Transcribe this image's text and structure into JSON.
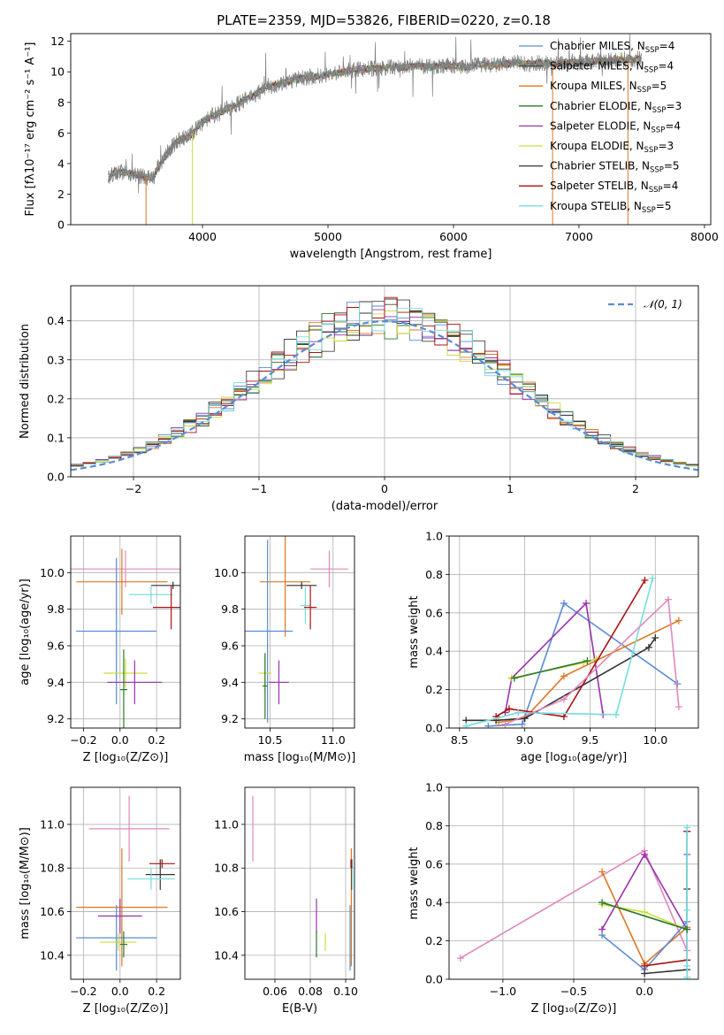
{
  "figure": {
    "title": "PLATE=2359, MJD=53826, FIBERID=0220, z=0.18"
  },
  "legend": [
    {
      "label": "Chabrier MILES, N",
      "sub": "SSP",
      "suffix": "=4",
      "color": "#5b8bd6"
    },
    {
      "label": "Salpeter MILES, N",
      "sub": "SSP",
      "suffix": "=4",
      "color": "#444444"
    },
    {
      "label": "Kroupa MILES, N",
      "sub": "SSP",
      "suffix": "=5",
      "color": "#dd7722"
    },
    {
      "label": "Chabrier ELODIE, N",
      "sub": "SSP",
      "suffix": "=3",
      "color": "#2a7a2a"
    },
    {
      "label": "Salpeter ELODIE, N",
      "sub": "SSP",
      "suffix": "=4",
      "color": "#9932aa"
    },
    {
      "label": "Kroupa ELODIE, N",
      "sub": "SSP",
      "suffix": "=3",
      "color": "#cddc39"
    },
    {
      "label": "Chabrier STELIB, N",
      "sub": "SSP",
      "suffix": "=5",
      "color": "#333333"
    },
    {
      "label": "Salpeter STELIB, N",
      "sub": "SSP",
      "suffix": "=4",
      "color": "#aa1111"
    },
    {
      "label": "Kroupa STELIB, N",
      "sub": "SSP",
      "suffix": "=5",
      "color": "#77dddd"
    }
  ],
  "chart_data": [
    {
      "id": "spectrum",
      "type": "line",
      "xlabel": "wavelength [Angstrom, rest frame]",
      "ylabel": "Flux [fλ10⁻¹⁷ erg cm⁻² s⁻¹ A⁻¹]",
      "xlim": [
        2950,
        8050
      ],
      "ylim": [
        0,
        12.5
      ],
      "xticks": [
        4000,
        5000,
        6000,
        7000,
        8000
      ],
      "yticks": [
        0,
        2,
        4,
        6,
        8,
        10,
        12
      ],
      "data_color": "#808080",
      "data_x": [
        3250,
        3300,
        3400,
        3500,
        3600,
        3700,
        3800,
        3900,
        4000,
        4100,
        4200,
        4300,
        4400,
        4500,
        4600,
        4700,
        4800,
        4900,
        5000,
        5100,
        5200,
        5300,
        5400,
        5500,
        5600,
        5700,
        5800,
        5900,
        6000,
        6100,
        6200,
        6300,
        6400,
        6500,
        6600,
        6700,
        6800,
        6900,
        7000,
        7100,
        7200,
        7300,
        7400,
        7500
      ],
      "data_y": [
        3.0,
        3.5,
        3.4,
        3.2,
        3.0,
        4.5,
        5.5,
        5.8,
        6.8,
        7.2,
        7.6,
        8.0,
        8.4,
        9.0,
        9.2,
        9.4,
        9.6,
        9.7,
        9.8,
        10.0,
        10.1,
        10.2,
        10.2,
        10.3,
        10.3,
        10.4,
        10.3,
        10.4,
        10.4,
        10.3,
        10.5,
        10.4,
        10.5,
        10.6,
        10.5,
        10.6,
        10.5,
        10.6,
        10.6,
        10.7,
        10.7,
        10.8,
        10.8,
        10.9
      ],
      "model_drops": [
        {
          "x": 3550,
          "color": "#dd7722"
        },
        {
          "x": 3920,
          "color": "#cddc39"
        },
        {
          "x": 6790,
          "color": "#dd7722"
        },
        {
          "x": 7390,
          "color": "#dd7722"
        }
      ]
    },
    {
      "id": "residuals",
      "type": "line",
      "xlabel": "(data-model)/error",
      "ylabel": "Normed distribution",
      "xlim": [
        -2.5,
        2.5
      ],
      "ylim": [
        0,
        0.49
      ],
      "xticks": [
        -2,
        -1,
        0,
        1,
        2
      ],
      "yticks": [
        0.0,
        0.1,
        0.2,
        0.3,
        0.4
      ],
      "legend": "𝒩(0, 1)",
      "curve_color": "#5b8bd6"
    },
    {
      "id": "age-vs-Z",
      "type": "scatter",
      "xlabel": "Z [log₁₀(Z/Z⊙)]",
      "ylabel": "age  [log₁₀(age/yr)]",
      "xlim": [
        -0.27,
        0.33
      ],
      "ylim": [
        9.15,
        10.2
      ],
      "xticks": [
        -0.2,
        0.0,
        0.2
      ],
      "yticks": [
        9.2,
        9.4,
        9.6,
        9.8,
        10.0
      ],
      "points": [
        {
          "x": 0.03,
          "y": 10.02,
          "xerr": 0.3,
          "yerr": 0.1,
          "color": "#e088bb"
        },
        {
          "x": 0.01,
          "y": 9.95,
          "xerr": 0.25,
          "yerr": 0.18,
          "color": "#dd7722"
        },
        {
          "x": 0.29,
          "y": 9.93,
          "xerr": 0.12,
          "yerr": 0.02,
          "color": "#333333"
        },
        {
          "x": 0.17,
          "y": 9.88,
          "xerr": 0.12,
          "yerr": 0.05,
          "color": "#77dddd"
        },
        {
          "x": 0.28,
          "y": 9.81,
          "xerr": 0.1,
          "yerr": 0.12,
          "color": "#aa1111"
        },
        {
          "x": -0.02,
          "y": 9.68,
          "xerr": 0.22,
          "yerr": 0.4,
          "color": "#5b8bd6"
        },
        {
          "x": 0.03,
          "y": 9.45,
          "xerr": 0.12,
          "yerr": 0.08,
          "color": "#cddc39"
        },
        {
          "x": 0.08,
          "y": 9.4,
          "xerr": 0.15,
          "yerr": 0.12,
          "color": "#9932aa"
        },
        {
          "x": 0.02,
          "y": 9.36,
          "xerr": 0.02,
          "yerr": 0.22,
          "color": "#2a7a2a"
        }
      ]
    },
    {
      "id": "age-vs-mass",
      "type": "scatter",
      "xlabel": "mass [log₁₀(M/M⊙)]",
      "ylabel": "",
      "xlim": [
        10.3,
        11.17
      ],
      "ylim": [
        9.15,
        10.2
      ],
      "xticks": [
        10.5,
        11.0
      ],
      "yticks": [
        9.2,
        9.4,
        9.6,
        9.8,
        10.0
      ],
      "points": [
        {
          "x": 10.97,
          "y": 10.02,
          "xerr": 0.15,
          "yerr": 0.1,
          "color": "#e088bb"
        },
        {
          "x": 10.62,
          "y": 9.95,
          "xerr": 0.2,
          "yerr": 0.3,
          "color": "#dd7722"
        },
        {
          "x": 10.75,
          "y": 9.93,
          "xerr": 0.12,
          "yerr": 0.02,
          "color": "#333333"
        },
        {
          "x": 10.78,
          "y": 9.82,
          "xerr": 0.04,
          "yerr": 0.1,
          "color": "#77dddd"
        },
        {
          "x": 10.82,
          "y": 9.81,
          "xerr": 0.05,
          "yerr": 0.12,
          "color": "#aa1111"
        },
        {
          "x": 10.48,
          "y": 9.68,
          "xerr": 0.2,
          "yerr": 0.5,
          "color": "#5b8bd6"
        },
        {
          "x": 10.46,
          "y": 9.45,
          "xerr": 0.05,
          "yerr": 0.1,
          "color": "#cddc39"
        },
        {
          "x": 10.57,
          "y": 9.4,
          "xerr": 0.08,
          "yerr": 0.12,
          "color": "#9932aa"
        },
        {
          "x": 10.46,
          "y": 9.38,
          "xerr": 0.02,
          "yerr": 0.18,
          "color": "#2a7a2a"
        }
      ]
    },
    {
      "id": "mass-weight-vs-age",
      "type": "line",
      "xlabel": "age  [log₁₀(age/yr)]",
      "ylabel": "mass weight",
      "xlim": [
        8.42,
        10.33
      ],
      "ylim": [
        0,
        1.0
      ],
      "xticks": [
        8.5,
        9.0,
        9.5,
        10.0
      ],
      "yticks": [
        0.0,
        0.2,
        0.4,
        0.6,
        0.8,
        1.0
      ],
      "series": [
        {
          "color": "#5b8bd6",
          "x": [
            8.72,
            8.98,
            9.3,
            10.17
          ],
          "y": [
            0.01,
            0.02,
            0.65,
            0.23
          ]
        },
        {
          "color": "#9932aa",
          "x": [
            8.85,
            8.9,
            9.47,
            9.6
          ],
          "y": [
            0.08,
            0.26,
            0.65,
            0.07
          ]
        },
        {
          "color": "#cddc39",
          "x": [
            8.9,
            9.45,
            9.55
          ],
          "y": [
            0.26,
            0.34,
            0.36
          ]
        },
        {
          "color": "#dd7722",
          "x": [
            8.8,
            9.0,
            9.3,
            10.18
          ],
          "y": [
            0.03,
            0.05,
            0.27,
            0.56
          ]
        },
        {
          "color": "#333333",
          "x": [
            8.55,
            8.78,
            9.0,
            9.95,
            10.0
          ],
          "y": [
            0.04,
            0.04,
            0.05,
            0.42,
            0.47
          ]
        },
        {
          "color": "#aa1111",
          "x": [
            8.78,
            8.88,
            9.3,
            9.92
          ],
          "y": [
            0.06,
            0.1,
            0.06,
            0.77
          ]
        },
        {
          "color": "#77dddd",
          "x": [
            8.55,
            8.95,
            9.7,
            9.98
          ],
          "y": [
            0.01,
            0.08,
            0.07,
            0.78
          ]
        },
        {
          "color": "#e088bb",
          "x": [
            8.85,
            9.3,
            10.1,
            10.18
          ],
          "y": [
            0.02,
            0.15,
            0.67,
            0.11
          ]
        },
        {
          "color": "#2a7a2a",
          "x": [
            8.92,
            9.48
          ],
          "y": [
            0.26,
            0.35
          ]
        }
      ]
    },
    {
      "id": "mass-vs-Z",
      "type": "scatter",
      "xlabel": "Z [log₁₀(Z/Z⊙)]",
      "ylabel": "mass [log₁₀(M/M⊙)]",
      "xlim": [
        -0.27,
        0.33
      ],
      "ylim": [
        10.29,
        11.17
      ],
      "xticks": [
        -0.2,
        0.0,
        0.2
      ],
      "yticks": [
        10.4,
        10.6,
        10.8,
        11.0
      ],
      "points": [
        {
          "x": 0.05,
          "y": 10.98,
          "xerr": 0.22,
          "yerr": 0.15,
          "color": "#e088bb"
        },
        {
          "x": 0.01,
          "y": 10.62,
          "xerr": 0.25,
          "yerr": 0.27,
          "color": "#dd7722"
        },
        {
          "x": 0.22,
          "y": 10.77,
          "xerr": 0.08,
          "yerr": 0.07,
          "color": "#333333"
        },
        {
          "x": 0.17,
          "y": 10.75,
          "xerr": 0.13,
          "yerr": 0.05,
          "color": "#77dddd"
        },
        {
          "x": 0.23,
          "y": 10.82,
          "xerr": 0.07,
          "yerr": 0.02,
          "color": "#aa1111"
        },
        {
          "x": -0.02,
          "y": 10.48,
          "xerr": 0.22,
          "yerr": 0.15,
          "color": "#5b8bd6"
        },
        {
          "x": -0.01,
          "y": 10.46,
          "xerr": 0.1,
          "yerr": 0.04,
          "color": "#cddc39"
        },
        {
          "x": 0.0,
          "y": 10.58,
          "xerr": 0.12,
          "yerr": 0.08,
          "color": "#9932aa"
        },
        {
          "x": 0.02,
          "y": 10.45,
          "xerr": 0.02,
          "yerr": 0.06,
          "color": "#2a7a2a"
        }
      ]
    },
    {
      "id": "mass-vs-ebv",
      "type": "scatter",
      "xlabel": "E(B-V)",
      "ylabel": "",
      "xlim": [
        0.043,
        0.105
      ],
      "ylim": [
        10.29,
        11.17
      ],
      "xticks": [
        0.06,
        0.08,
        0.1
      ],
      "yticks": [
        10.4,
        10.6,
        10.8,
        11.0
      ],
      "points": [
        {
          "x": 0.0475,
          "y": 10.98,
          "xerr": 0,
          "yerr": 0.15,
          "color": "#e088bb"
        },
        {
          "x": 0.1032,
          "y": 10.62,
          "xerr": 0,
          "yerr": 0.27,
          "color": "#dd7722"
        },
        {
          "x": 0.1035,
          "y": 10.77,
          "xerr": 0,
          "yerr": 0.07,
          "color": "#333333"
        },
        {
          "x": 0.1038,
          "y": 10.75,
          "xerr": 0,
          "yerr": 0.05,
          "color": "#77dddd"
        },
        {
          "x": 0.103,
          "y": 10.82,
          "xerr": 0,
          "yerr": 0.02,
          "color": "#aa1111"
        },
        {
          "x": 0.1025,
          "y": 10.48,
          "xerr": 0,
          "yerr": 0.15,
          "color": "#5b8bd6"
        },
        {
          "x": 0.0885,
          "y": 10.46,
          "xerr": 0,
          "yerr": 0.04,
          "color": "#cddc39"
        },
        {
          "x": 0.0835,
          "y": 10.58,
          "xerr": 0,
          "yerr": 0.08,
          "color": "#9932aa"
        },
        {
          "x": 0.0835,
          "y": 10.45,
          "xerr": 0,
          "yerr": 0.06,
          "color": "#2a7a2a"
        }
      ]
    },
    {
      "id": "mass-weight-vs-Z",
      "type": "line",
      "xlabel": "Z [log₁₀(Z/Z⊙)]",
      "ylabel": "mass weight",
      "xlim": [
        -1.38,
        0.38
      ],
      "ylim": [
        0,
        1.0
      ],
      "xticks": [
        -1.0,
        -0.5,
        0.0
      ],
      "yticks": [
        0.0,
        0.2,
        0.4,
        0.6,
        0.8,
        1.0
      ],
      "series": [
        {
          "color": "#e088bb",
          "x": [
            -1.3,
            0.0,
            0.3
          ],
          "y": [
            0.11,
            0.67,
            0.15
          ]
        },
        {
          "color": "#dd7722",
          "x": [
            -0.3,
            0.0,
            0.3
          ],
          "y": [
            0.56,
            0.08,
            0.27
          ]
        },
        {
          "color": "#9932aa",
          "x": [
            -0.3,
            0.0,
            0.3
          ],
          "y": [
            0.26,
            0.65,
            0.26
          ]
        },
        {
          "color": "#5b8bd6",
          "x": [
            -0.3,
            0.0,
            0.3,
            0.3
          ],
          "y": [
            0.23,
            0.05,
            0.3,
            0.65
          ]
        },
        {
          "color": "#cddc39",
          "x": [
            -0.3,
            0.0,
            0.3
          ],
          "y": [
            0.39,
            0.35,
            0.26
          ]
        },
        {
          "color": "#333333",
          "x": [
            0.0,
            0.3,
            0.3,
            0.3
          ],
          "y": [
            0.03,
            0.05,
            0.47,
            0.77
          ]
        },
        {
          "color": "#aa1111",
          "x": [
            0.0,
            0.3,
            0.3
          ],
          "y": [
            0.07,
            0.1,
            0.77
          ]
        },
        {
          "color": "#77dddd",
          "x": [
            0.3,
            0.3,
            0.3,
            0.3
          ],
          "y": [
            0.01,
            0.07,
            0.36,
            0.79
          ]
        },
        {
          "color": "#2a7a2a",
          "x": [
            -0.3,
            0.3
          ],
          "y": [
            0.4,
            0.26
          ]
        }
      ]
    }
  ]
}
